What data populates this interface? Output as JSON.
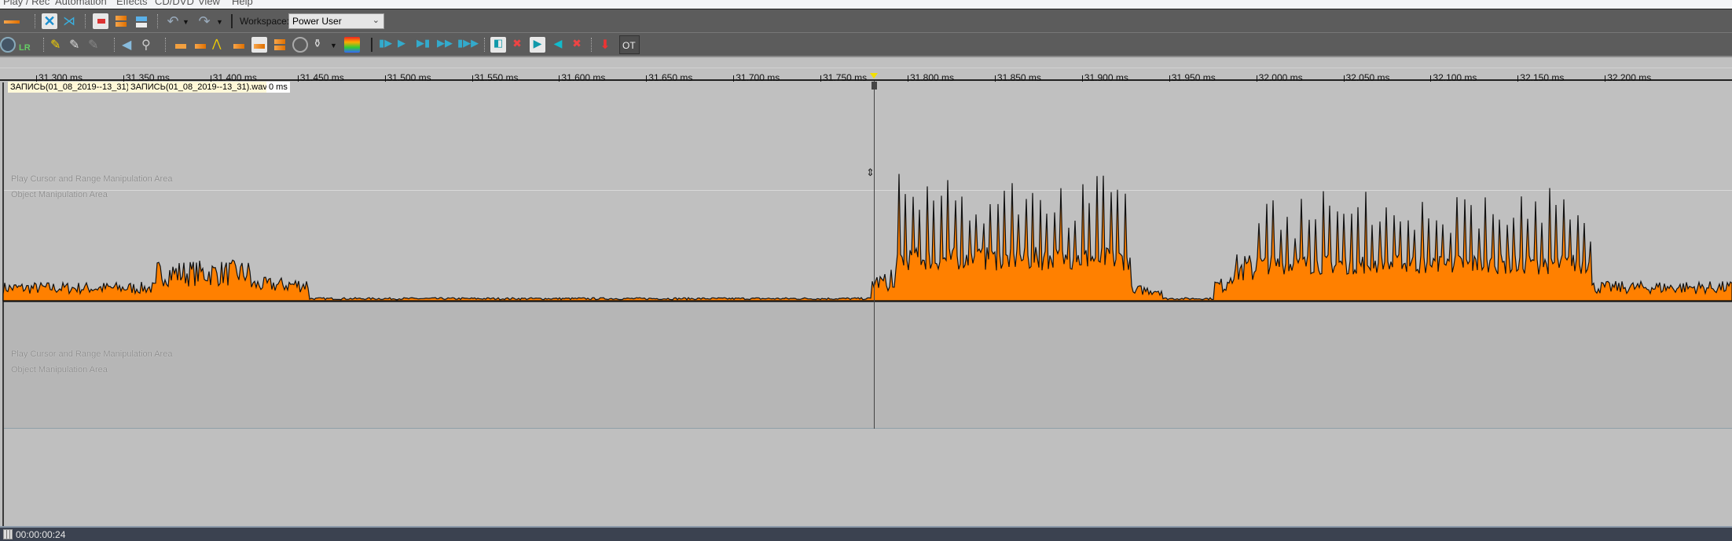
{
  "menu": [
    "Play / Rec",
    "Automation",
    "Effects",
    "CD/DVD",
    "View",
    "Help"
  ],
  "toolbar": {
    "workspace_label": "Workspace:",
    "workspace_value": "Power User",
    "ot_label": "OT"
  },
  "ruler": {
    "ticks": [
      "31.300 ms",
      "31.350 ms",
      "31.400 ms",
      "31.450 ms",
      "31.500 ms",
      "31.550 ms",
      "31.600 ms",
      "31.650 ms",
      "31.700 ms",
      "31.750 ms",
      "31.800 ms",
      "31.850 ms",
      "31.900 ms",
      "31.950 ms",
      "32.000 ms",
      "32.050 ms",
      "32.100 ms",
      "32.150 ms",
      "32.200 ms"
    ]
  },
  "track": {
    "clip_name_1": "ЗАПИСЬ(01_08_2019--13_31)",
    "clip_name_2": "ЗАПИСЬ(01_08_2019--13_31).wav",
    "clip_offset": "0 ms",
    "hint_cursor": "Play Cursor and Range Manipulation Area",
    "hint_object": "Object Manipulation Area",
    "waveform_color": "#ff8000"
  },
  "status": {
    "time": "00:00:00:24"
  }
}
